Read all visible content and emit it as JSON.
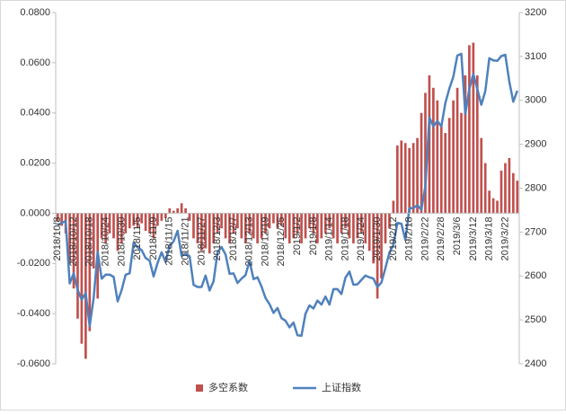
{
  "chart_data": {
    "type": "bar",
    "categories": [
      "2018/10/8",
      null,
      null,
      null,
      "2018/10/12",
      null,
      null,
      null,
      "2018/10/18",
      null,
      null,
      null,
      "2018/10/24",
      null,
      null,
      null,
      "2018/10/30",
      null,
      null,
      null,
      "2018/11/5",
      null,
      null,
      null,
      "2018/11/9",
      null,
      null,
      null,
      "2018/11/15",
      null,
      null,
      null,
      "2018/11/21",
      null,
      null,
      null,
      "2018/11/27",
      null,
      null,
      null,
      "2018/12/3",
      null,
      null,
      null,
      "2018/12/7",
      null,
      null,
      null,
      "2018/12/13",
      null,
      null,
      null,
      "2018/12/19",
      null,
      null,
      null,
      "2018/12/25",
      null,
      null,
      null,
      "2019/1/2",
      null,
      null,
      null,
      "2019/1/8",
      null,
      null,
      null,
      "2019/1/14",
      null,
      null,
      null,
      "2019/1/18",
      null,
      null,
      null,
      "2019/1/24",
      null,
      null,
      null,
      "2019/1/30",
      null,
      null,
      null,
      "2019/2/12",
      null,
      null,
      null,
      "2019/2/18",
      null,
      null,
      null,
      "2019/2/22",
      null,
      null,
      null,
      "2019/2/28",
      null,
      null,
      null,
      "2019/3/6",
      null,
      null,
      null,
      "2019/3/12",
      null,
      null,
      null,
      "2019/3/18",
      null,
      null,
      null,
      "2019/3/22",
      null,
      null,
      null
    ],
    "series": [
      {
        "name": "多空系数",
        "type": "bar",
        "color": "#c0504d",
        "values": [
          -0.003,
          -0.005,
          -0.008,
          -0.02,
          -0.03,
          -0.042,
          -0.052,
          -0.058,
          -0.047,
          -0.022,
          -0.034,
          -0.01,
          -0.012,
          -0.008,
          -0.01,
          -0.015,
          -0.012,
          -0.008,
          -0.006,
          -0.005,
          -0.006,
          -0.004,
          -0.007,
          -0.008,
          -0.01,
          -0.005,
          -0.003,
          -0.002,
          0.002,
          0.001,
          0.002,
          0.004,
          0.002,
          -0.003,
          -0.01,
          -0.012,
          -0.015,
          -0.014,
          -0.016,
          -0.012,
          -0.008,
          -0.006,
          -0.01,
          -0.012,
          -0.008,
          -0.006,
          -0.01,
          -0.012,
          -0.008,
          -0.01,
          -0.012,
          -0.01,
          -0.008,
          -0.006,
          -0.004,
          -0.006,
          -0.005,
          -0.01,
          -0.012,
          -0.01,
          -0.008,
          -0.012,
          -0.01,
          -0.006,
          -0.008,
          -0.012,
          -0.01,
          -0.008,
          -0.006,
          -0.01,
          -0.012,
          -0.008,
          -0.006,
          -0.01,
          -0.012,
          -0.01,
          -0.008,
          -0.012,
          -0.015,
          -0.02,
          -0.034,
          -0.026,
          -0.012,
          -0.006,
          0.005,
          0.027,
          0.029,
          0.028,
          0.026,
          0.028,
          0.03,
          0.04,
          0.048,
          0.055,
          0.05,
          0.045,
          0.035,
          0.032,
          0.038,
          0.045,
          0.05,
          0.04,
          0.055,
          0.067,
          0.068,
          0.055,
          0.03,
          0.02,
          0.009,
          0.006,
          0.005,
          0.017,
          0.02,
          0.022,
          0.016,
          0.013
        ]
      },
      {
        "name": "上证指数",
        "type": "line",
        "axis": "y2",
        "color": "#4f81bd",
        "values": [
          2716,
          2721,
          2725,
          2583,
          2606,
          2568,
          2546,
          2561,
          2486,
          2550,
          2655,
          2594,
          2603,
          2603,
          2598,
          2542,
          2568,
          2603,
          2606,
          2676,
          2665,
          2659,
          2641,
          2635,
          2599,
          2630,
          2654,
          2632,
          2668,
          2679,
          2703,
          2646,
          2651,
          2645,
          2580,
          2575,
          2575,
          2601,
          2567,
          2588,
          2654,
          2666,
          2649,
          2605,
          2606,
          2584,
          2594,
          2602,
          2634,
          2593,
          2597,
          2576,
          2550,
          2536,
          2516,
          2527,
          2504,
          2498,
          2483,
          2494,
          2465,
          2464,
          2514,
          2533,
          2526,
          2544,
          2535,
          2553,
          2535,
          2570,
          2570,
          2559,
          2596,
          2610,
          2580,
          2581,
          2591,
          2601,
          2597,
          2594,
          2575,
          2585,
          2618,
          2653,
          2671,
          2721,
          2719,
          2682,
          2754,
          2755,
          2761,
          2751,
          2804,
          2961,
          2941,
          2953,
          2941,
          2994,
          3027,
          3054,
          3102,
          3106,
          2969,
          3026,
          3060,
          3026,
          2990,
          3021,
          3096,
          3091,
          3090,
          3101,
          3104,
          3043,
          2997,
          3022
        ]
      }
    ],
    "ylim": [
      -0.06,
      0.08
    ],
    "yticks": [
      {
        "value": -0.06,
        "label": "-0.0600"
      },
      {
        "value": -0.04,
        "label": "-0.0400"
      },
      {
        "value": -0.02,
        "label": "-0.0200"
      },
      {
        "value": 0,
        "label": "0.0000"
      },
      {
        "value": 0.02,
        "label": "0.0200"
      },
      {
        "value": 0.04,
        "label": "0.0400"
      },
      {
        "value": 0.06,
        "label": "0.0600"
      },
      {
        "value": 0.08,
        "label": "0.0800"
      }
    ],
    "y2lim": [
      2400,
      3200
    ],
    "y2ticks": [
      2400,
      2500,
      2600,
      2700,
      2800,
      2900,
      3000,
      3100,
      3200
    ],
    "legend": "bottom"
  }
}
